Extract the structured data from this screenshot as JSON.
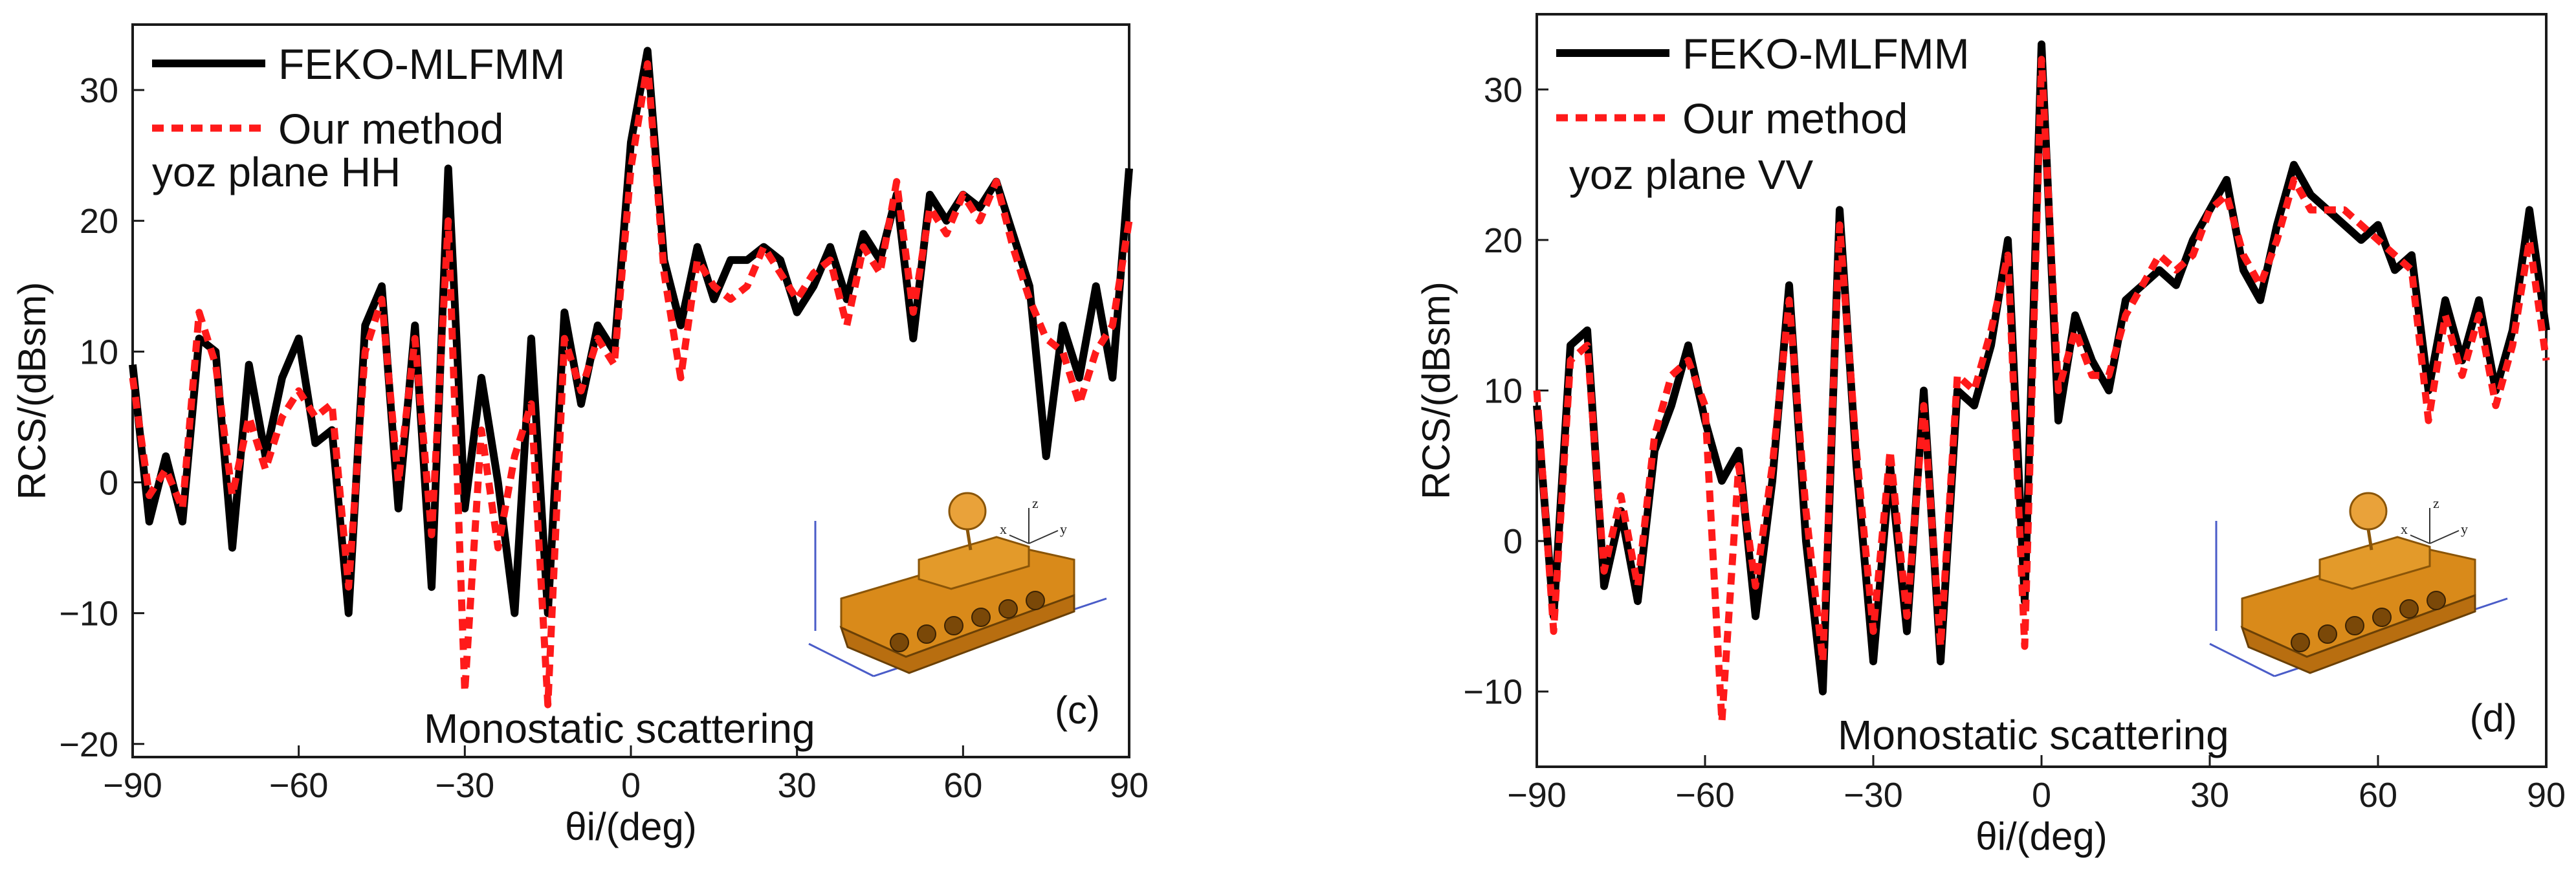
{
  "colors": {
    "reference": "#000000",
    "method": "#ff1a1a",
    "frame": "#1a1a1a",
    "model": "#d98a1a"
  },
  "chart_data": [
    {
      "type": "line",
      "panel": "(c)",
      "title": "",
      "xlabel": "θi/(deg)",
      "ylabel": "RCS/(dBsm)",
      "xlim": [
        -90,
        90
      ],
      "ylim": [
        -21,
        35
      ],
      "xticks": [
        -90,
        -60,
        -30,
        0,
        30,
        60,
        90
      ],
      "xtick_labels": [
        "−90",
        "−60",
        "−30",
        "0",
        "30",
        "60",
        "90"
      ],
      "yticks": [
        -20,
        -10,
        0,
        10,
        20,
        30
      ],
      "ytick_labels": [
        "−20",
        "−10",
        "0",
        "10",
        "20",
        "30"
      ],
      "legend": [
        "FEKO-MLFMM",
        "Our method"
      ],
      "legend_position": "top-left",
      "annotations": [
        "yoz plane HH",
        "Monostatic scattering"
      ],
      "inset": "tank model with axes x, y, z",
      "x": [
        -90,
        -87,
        -84,
        -81,
        -78,
        -75,
        -72,
        -69,
        -66,
        -63,
        -60,
        -57,
        -54,
        -51,
        -48,
        -45,
        -42,
        -39,
        -36,
        -33,
        -30,
        -27,
        -24,
        -21,
        -18,
        -15,
        -12,
        -9,
        -6,
        -3,
        0,
        3,
        6,
        9,
        12,
        15,
        18,
        21,
        24,
        27,
        30,
        33,
        36,
        39,
        42,
        45,
        48,
        51,
        54,
        57,
        60,
        63,
        66,
        69,
        72,
        75,
        78,
        81,
        84,
        87,
        90
      ],
      "series": [
        {
          "name": "FEKO-MLFMM",
          "values": [
            9,
            -3,
            2,
            -3,
            11,
            10,
            -5,
            9,
            2,
            8,
            11,
            3,
            4,
            -10,
            12,
            15,
            -2,
            12,
            -8,
            24,
            -2,
            8,
            0,
            -10,
            11,
            -10,
            13,
            6,
            12,
            10,
            26,
            33,
            17,
            12,
            18,
            14,
            17,
            17,
            18,
            17,
            13,
            15,
            18,
            14,
            19,
            17,
            22,
            11,
            22,
            20,
            22,
            21,
            23,
            19,
            15,
            2,
            12,
            8,
            15,
            8,
            24
          ]
        },
        {
          "name": "Our method",
          "values": [
            8,
            -1,
            1,
            -2,
            13,
            9,
            -1,
            5,
            1,
            5,
            7,
            5,
            6,
            -8,
            10,
            14,
            0,
            11,
            -4,
            20,
            -16,
            4,
            -5,
            2,
            6,
            -17,
            11,
            7,
            11,
            9,
            24,
            32,
            16,
            8,
            17,
            15,
            14,
            15,
            18,
            16,
            14,
            16,
            17,
            12,
            18,
            16,
            23,
            13,
            21,
            19,
            22,
            20,
            23,
            18,
            14,
            11,
            10,
            6,
            10,
            12,
            20
          ]
        }
      ]
    },
    {
      "type": "line",
      "panel": "(d)",
      "title": "",
      "xlabel": "θi/(deg)",
      "ylabel": "RCS/(dBsm)",
      "xlim": [
        -90,
        90
      ],
      "ylim": [
        -15,
        35
      ],
      "xticks": [
        -90,
        -60,
        -30,
        0,
        30,
        60,
        90
      ],
      "xtick_labels": [
        "−90",
        "−60",
        "−30",
        "0",
        "30",
        "60",
        "90"
      ],
      "yticks": [
        -10,
        0,
        10,
        20,
        30
      ],
      "ytick_labels": [
        "−10",
        "0",
        "10",
        "20",
        "30"
      ],
      "legend": [
        "FEKO-MLFMM",
        "Our method"
      ],
      "legend_position": "top-left",
      "annotations": [
        "yoz plane  VV",
        "Monostatic scattering"
      ],
      "inset": "tank model with axes x, y, z",
      "x": [
        -90,
        -87,
        -84,
        -81,
        -78,
        -75,
        -72,
        -69,
        -66,
        -63,
        -60,
        -57,
        -54,
        -51,
        -48,
        -45,
        -42,
        -39,
        -36,
        -33,
        -30,
        -27,
        -24,
        -21,
        -18,
        -15,
        -12,
        -9,
        -6,
        -3,
        0,
        3,
        6,
        9,
        12,
        15,
        18,
        21,
        24,
        27,
        30,
        33,
        36,
        39,
        42,
        45,
        48,
        51,
        54,
        57,
        60,
        63,
        66,
        69,
        72,
        75,
        78,
        81,
        84,
        87,
        90
      ],
      "series": [
        {
          "name": "FEKO-MLFMM",
          "values": [
            9,
            -5,
            13,
            14,
            -3,
            2,
            -4,
            6,
            9,
            13,
            8,
            4,
            6,
            -5,
            4,
            17,
            0,
            -10,
            22,
            5,
            -8,
            5,
            -6,
            10,
            -8,
            10,
            9,
            13,
            20,
            -4,
            33,
            8,
            15,
            12,
            10,
            16,
            17,
            18,
            17,
            20,
            22,
            24,
            18,
            16,
            21,
            25,
            23,
            22,
            21,
            20,
            21,
            18,
            19,
            10,
            16,
            12,
            16,
            10,
            14,
            22,
            14
          ]
        },
        {
          "name": "Our method",
          "values": [
            10,
            -6,
            12,
            13,
            -2,
            3,
            -3,
            7,
            11,
            12,
            9,
            -12,
            5,
            -3,
            5,
            16,
            2,
            -8,
            21,
            6,
            -6,
            6,
            -5,
            9,
            -7,
            11,
            10,
            14,
            19,
            -7,
            32,
            10,
            14,
            11,
            11,
            15,
            17,
            19,
            18,
            19,
            22,
            23,
            19,
            17,
            20,
            24,
            22,
            22,
            22,
            21,
            20,
            19,
            18,
            8,
            15,
            11,
            15,
            9,
            13,
            20,
            12
          ]
        }
      ]
    }
  ]
}
